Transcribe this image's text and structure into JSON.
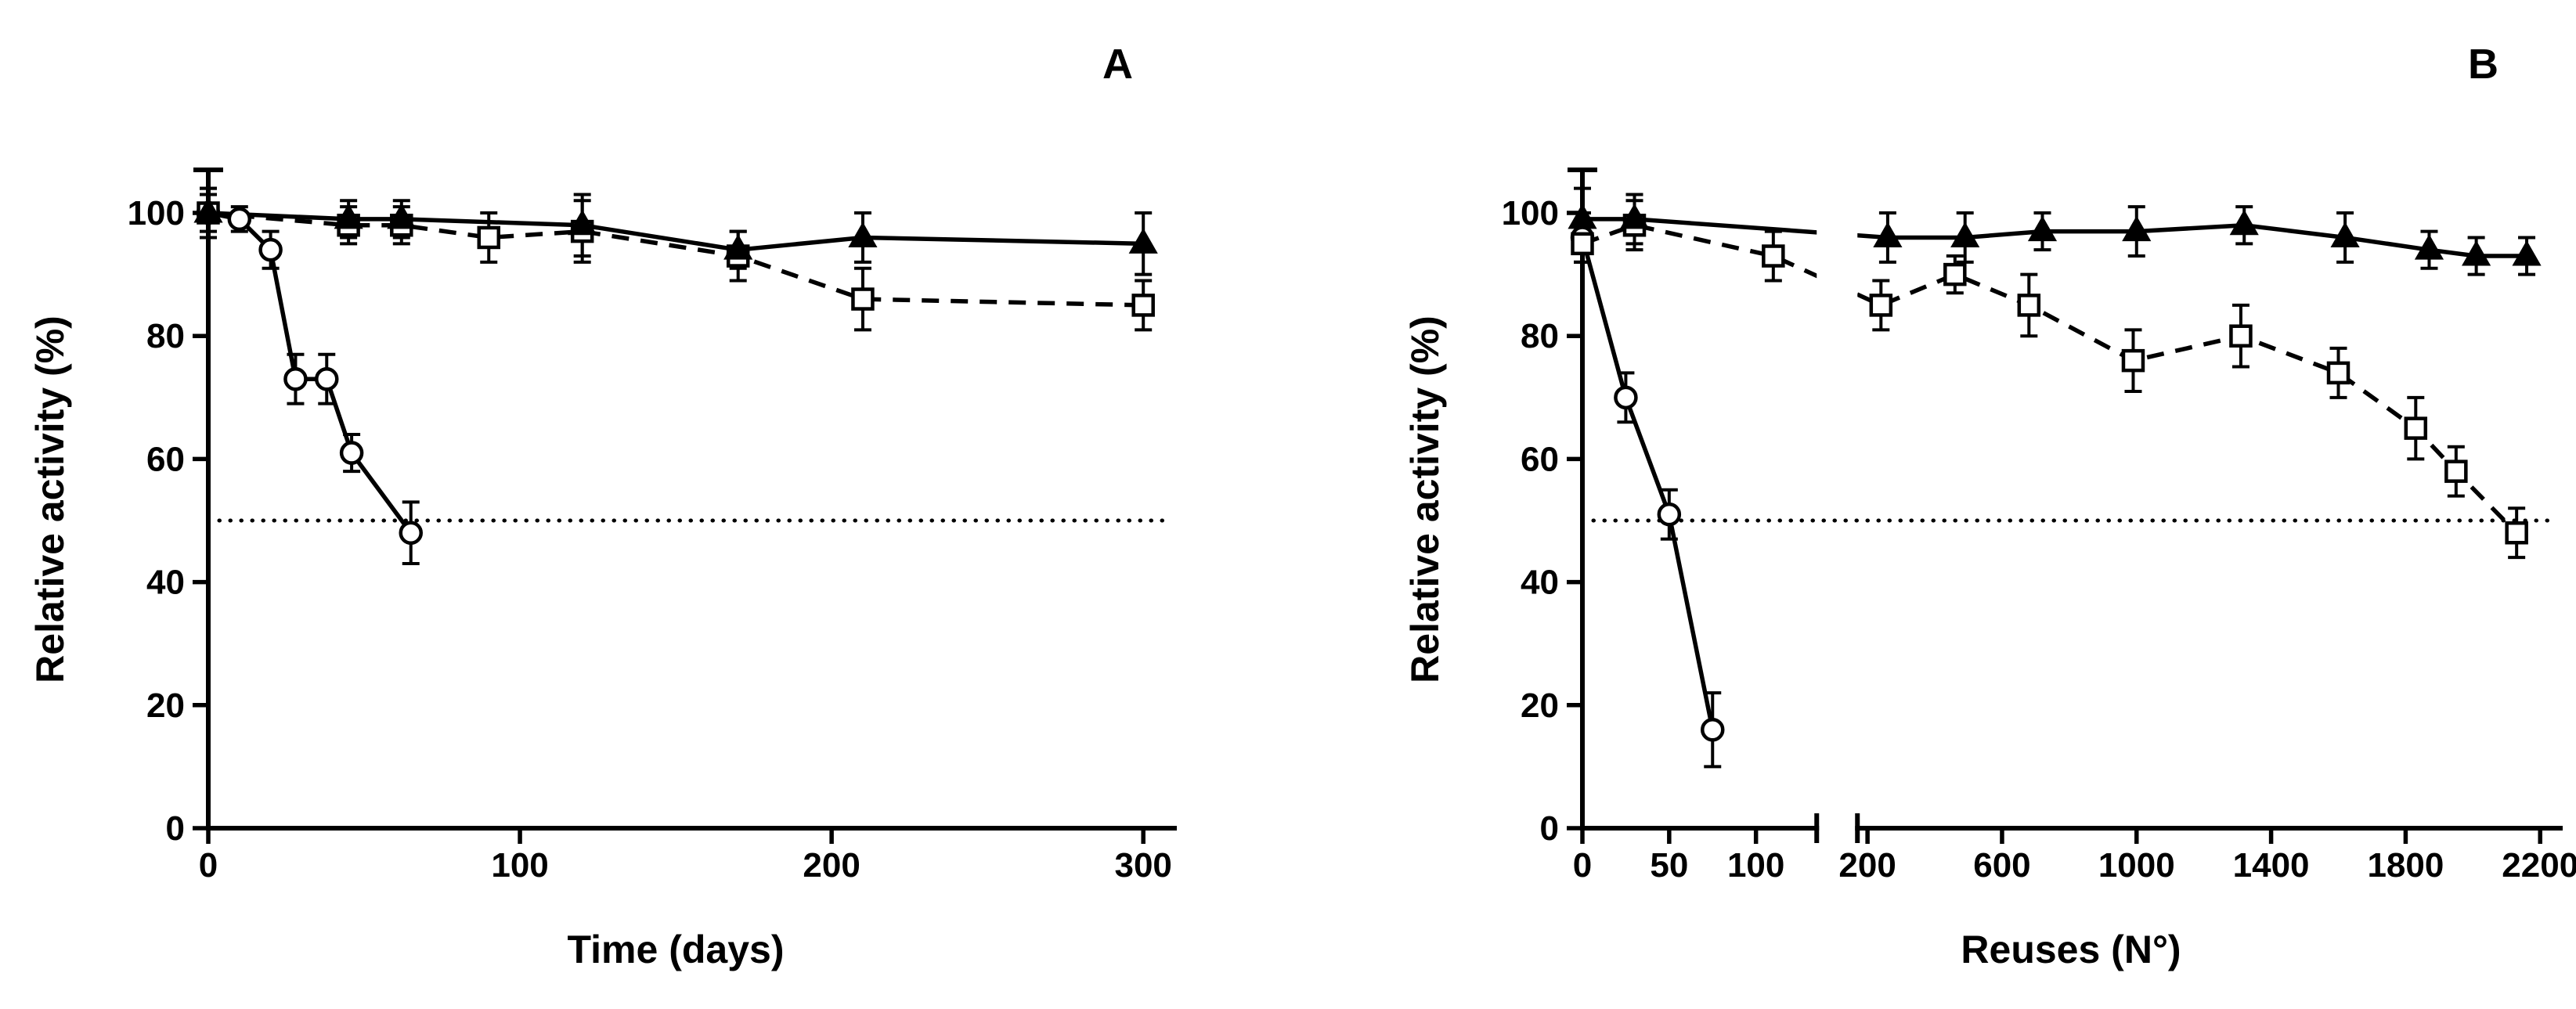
{
  "figure": {
    "background": "#ffffff",
    "ink": "#000000"
  },
  "chart_data": [
    {
      "type": "line",
      "panel_label": "A",
      "xlabel": "Time (days)",
      "ylabel": "Relative activity (%)",
      "grid": false,
      "legend": "none",
      "x_axis": {
        "segments": [
          {
            "domain": [
              0,
              310
            ],
            "ticks": [
              0,
              100,
              200,
              300
            ],
            "fraction": 1
          }
        ]
      },
      "y_axis": {
        "domain": [
          0,
          107
        ],
        "ticks": [
          0,
          20,
          40,
          60,
          80,
          100
        ]
      },
      "reference_line": {
        "y": 50,
        "style": "dotted"
      },
      "series": [
        {
          "name": "open-circles",
          "marker": "open-circle",
          "line_style": "solid",
          "x": [
            0,
            10,
            20,
            28,
            38,
            46,
            65
          ],
          "y": [
            100,
            99,
            94,
            73,
            73,
            61,
            48
          ],
          "err": [
            4,
            2,
            3,
            4,
            4,
            3,
            5
          ]
        },
        {
          "name": "open-squares",
          "marker": "open-square",
          "line_style": "dashed",
          "x": [
            0,
            45,
            62,
            90,
            120,
            170,
            210,
            300
          ],
          "y": [
            100,
            98,
            98,
            96,
            97,
            93,
            86,
            85
          ],
          "err": [
            3,
            3,
            3,
            4,
            5,
            4,
            5,
            4
          ]
        },
        {
          "name": "filled-triangles",
          "marker": "filled-triangle",
          "line_style": "solid",
          "x": [
            0,
            45,
            62,
            120,
            170,
            210,
            300
          ],
          "y": [
            100,
            99,
            99,
            98,
            94,
            96,
            95
          ],
          "err": [
            4,
            3,
            3,
            5,
            3,
            4,
            5
          ]
        }
      ]
    },
    {
      "type": "line",
      "panel_label": "B",
      "xlabel": "Reuses (N°)",
      "ylabel": "Relative activity (%)",
      "grid": false,
      "legend": "none",
      "x_axis": {
        "segments": [
          {
            "domain": [
              0,
              135
            ],
            "ticks": [
              0,
              50,
              100
            ],
            "fraction": 0.25
          },
          {
            "domain": [
              170,
              2260
            ],
            "ticks": [
              200,
              600,
              1000,
              1400,
              1800,
              2200
            ],
            "fraction": 0.75
          }
        ]
      },
      "y_axis": {
        "domain": [
          0,
          107
        ],
        "ticks": [
          0,
          20,
          40,
          60,
          80,
          100
        ]
      },
      "reference_line": {
        "y": 50,
        "style": "dotted"
      },
      "series": [
        {
          "name": "open-circles",
          "marker": "open-circle",
          "line_style": "solid",
          "x": [
            0,
            25,
            50,
            75
          ],
          "y": [
            96,
            70,
            51,
            16
          ],
          "err": [
            4,
            4,
            4,
            6
          ]
        },
        {
          "name": "open-squares",
          "marker": "open-square",
          "line_style": "dashed",
          "x": [
            0,
            30,
            110,
            240,
            460,
            680,
            990,
            1310,
            1600,
            1830,
            1950,
            2130
          ],
          "y": [
            95,
            98,
            93,
            85,
            90,
            85,
            76,
            80,
            74,
            65,
            58,
            48
          ],
          "err": [
            3,
            4,
            4,
            4,
            3,
            5,
            5,
            5,
            4,
            5,
            4,
            4
          ]
        },
        {
          "name": "filled-triangles",
          "marker": "filled-triangle",
          "line_style": "solid",
          "x": [
            0,
            30,
            260,
            490,
            720,
            1000,
            1320,
            1620,
            1870,
            2010,
            2160
          ],
          "y": [
            99,
            99,
            96,
            96,
            97,
            97,
            98,
            96,
            94,
            93,
            93
          ],
          "err": [
            5,
            4,
            4,
            4,
            3,
            4,
            3,
            4,
            3,
            3,
            3
          ]
        }
      ]
    }
  ]
}
